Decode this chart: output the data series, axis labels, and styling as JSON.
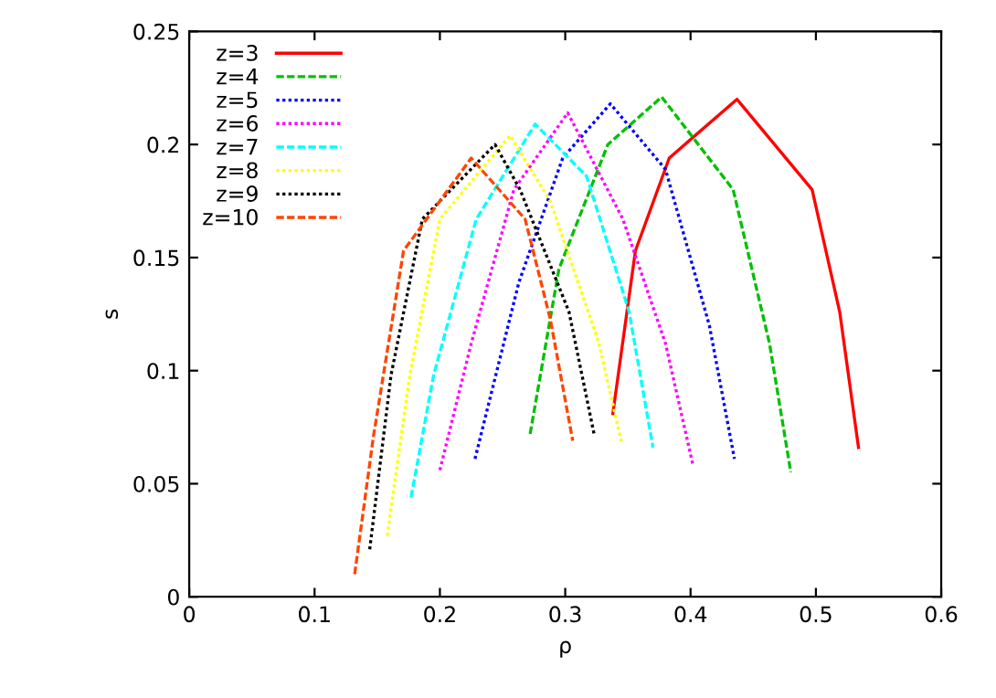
{
  "chart_data": {
    "type": "line",
    "xlabel": "ρ",
    "ylabel": "s",
    "xlim": [
      0,
      0.6
    ],
    "ylim": [
      0,
      0.25
    ],
    "xticks": [
      0,
      0.1,
      0.2,
      0.3,
      0.4,
      0.5,
      0.6
    ],
    "yticks": [
      0,
      0.05,
      0.1,
      0.15,
      0.2,
      0.25
    ],
    "grid": false,
    "legend": "top left",
    "series": [
      {
        "name": "z=3",
        "color": "#ff0000",
        "line_style": "solid",
        "x": [
          0.338,
          0.356,
          0.383,
          0.437,
          0.497,
          0.519,
          0.534
        ],
        "values": [
          0.081,
          0.153,
          0.194,
          0.22,
          0.18,
          0.126,
          0.066
        ]
      },
      {
        "name": "z=4",
        "color": "#00c000",
        "line_style": "dashed",
        "x": [
          0.272,
          0.295,
          0.334,
          0.377,
          0.434,
          0.463,
          0.48
        ],
        "values": [
          0.072,
          0.145,
          0.2,
          0.221,
          0.18,
          0.112,
          0.055
        ]
      },
      {
        "name": "z=5",
        "color": "#0000ff",
        "line_style": "dotted",
        "x": [
          0.228,
          0.263,
          0.298,
          0.336,
          0.38,
          0.415,
          0.435
        ],
        "values": [
          0.061,
          0.139,
          0.194,
          0.218,
          0.189,
          0.12,
          0.061
        ]
      },
      {
        "name": "z=6",
        "color": "#ff00ff",
        "line_style": "dotted",
        "x": [
          0.2,
          0.225,
          0.259,
          0.302,
          0.346,
          0.38,
          0.402
        ],
        "values": [
          0.056,
          0.112,
          0.18,
          0.214,
          0.167,
          0.112,
          0.058
        ]
      },
      {
        "name": "z=7",
        "color": "#00ffff",
        "line_style": "dashed",
        "x": [
          0.177,
          0.195,
          0.229,
          0.276,
          0.317,
          0.351,
          0.37
        ],
        "values": [
          0.044,
          0.098,
          0.167,
          0.209,
          0.186,
          0.126,
          0.066
        ]
      },
      {
        "name": "z=8",
        "color": "#ffff00",
        "line_style": "dotted",
        "x": [
          0.158,
          0.176,
          0.2,
          0.256,
          0.288,
          0.327,
          0.345
        ],
        "values": [
          0.027,
          0.098,
          0.167,
          0.204,
          0.175,
          0.112,
          0.068
        ]
      },
      {
        "name": "z=9",
        "color": "#000000",
        "line_style": "dotted",
        "x": [
          0.144,
          0.161,
          0.186,
          0.244,
          0.264,
          0.303,
          0.323
        ],
        "values": [
          0.021,
          0.098,
          0.167,
          0.2,
          0.18,
          0.126,
          0.072
        ]
      },
      {
        "name": "z=10",
        "color": "#ff4500",
        "line_style": "dashed",
        "x": [
          0.132,
          0.147,
          0.171,
          0.225,
          0.268,
          0.288,
          0.306
        ],
        "values": [
          0.01,
          0.071,
          0.153,
          0.194,
          0.167,
          0.123,
          0.069
        ]
      }
    ]
  }
}
